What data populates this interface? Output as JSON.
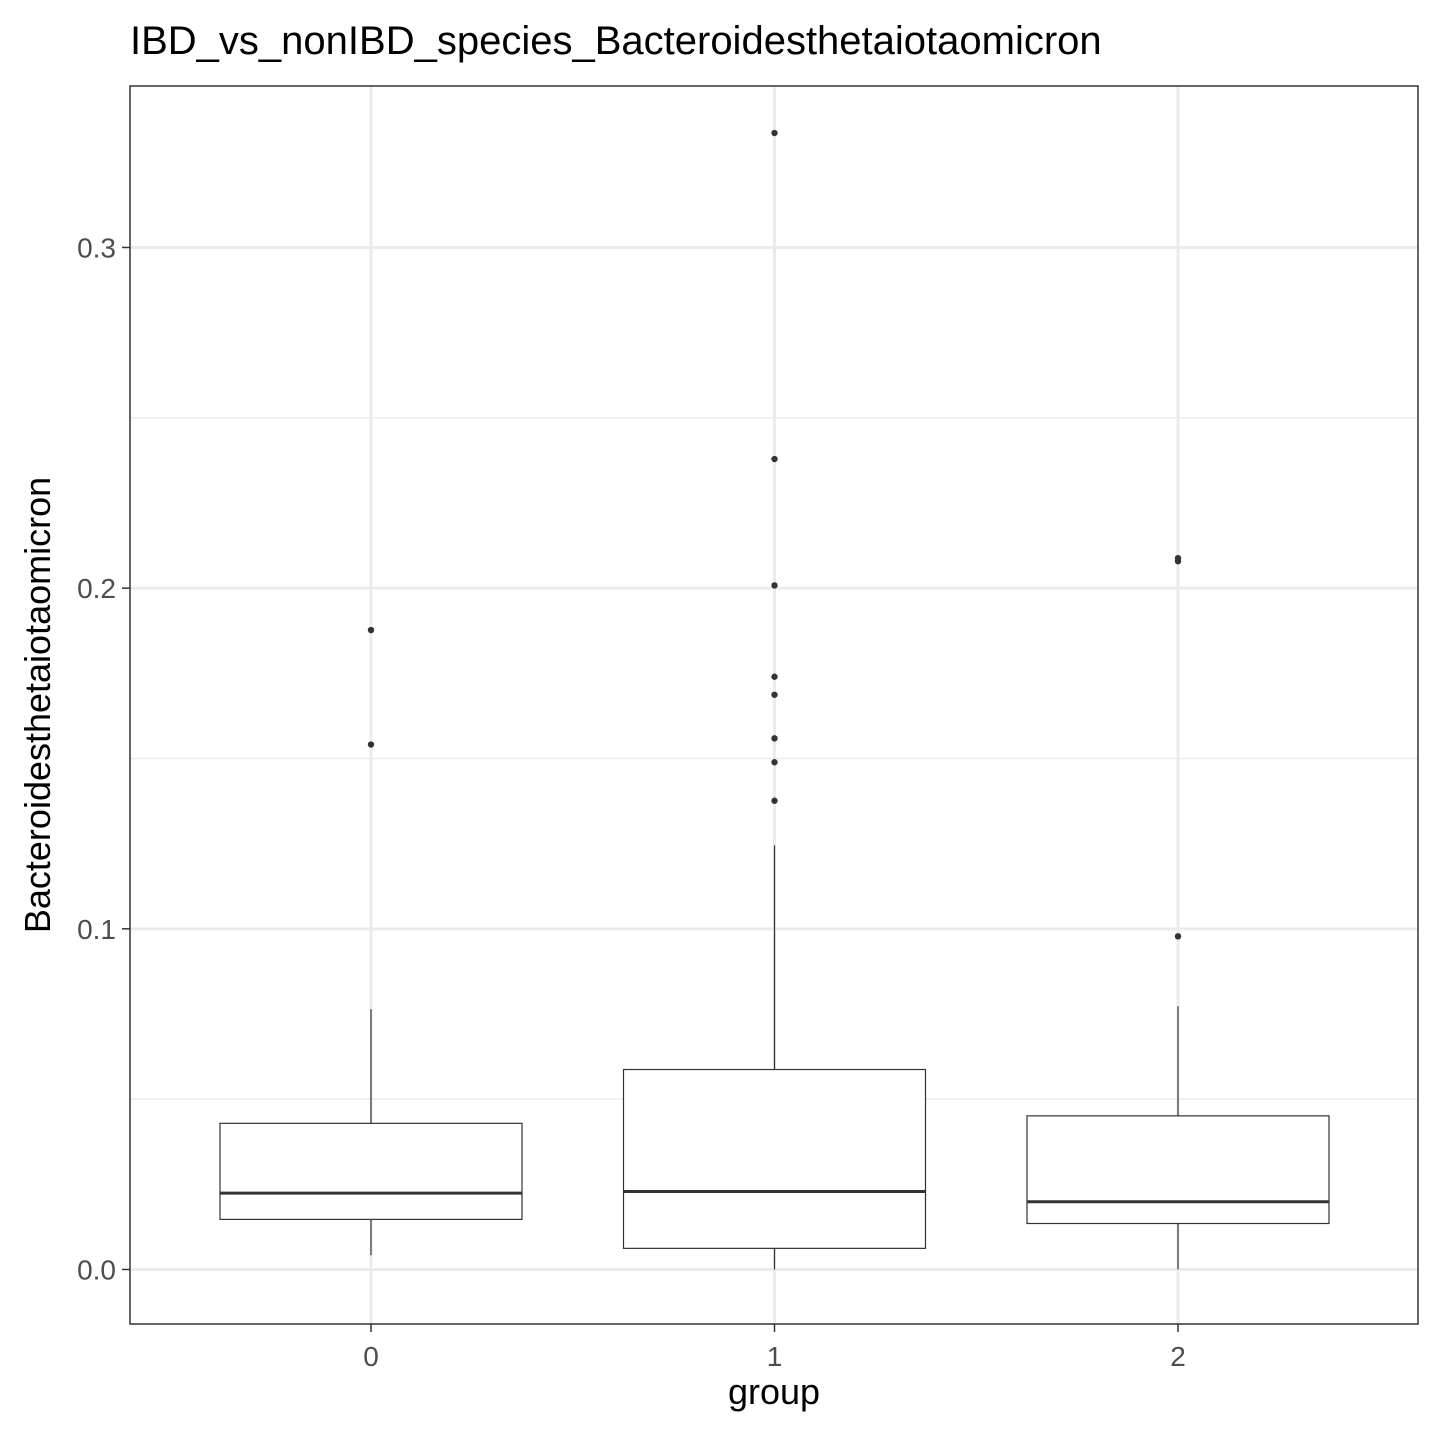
{
  "chart_data": {
    "type": "boxplot",
    "title": "IBD_vs_nonIBD_species_Bacteroidesthetaiotaomicron",
    "xlabel": "group",
    "ylabel": "Bacteroidesthetaiotaomicron",
    "categories": [
      "0",
      "1",
      "2"
    ],
    "ylim": [
      -0.016,
      0.3474
    ],
    "yticks": [
      0.0,
      0.1,
      0.2,
      0.3
    ],
    "ytick_labels": [
      "0.0",
      "0.1",
      "0.2",
      "0.3"
    ],
    "grid": true,
    "legend": false,
    "boxes": [
      {
        "group": "0",
        "whisker_low": 0.0042,
        "q1": 0.0147,
        "median": 0.0224,
        "q3": 0.0429,
        "whisker_high": 0.0764,
        "outliers": [
          0.1877,
          0.1541
        ]
      },
      {
        "group": "1",
        "whisker_low": 0.0,
        "q1": 0.0062,
        "median": 0.0229,
        "q3": 0.0587,
        "whisker_high": 0.1245,
        "outliers": [
          0.3336,
          0.2379,
          0.2008,
          0.174,
          0.1687,
          0.1559,
          0.1489,
          0.1376
        ]
      },
      {
        "group": "2",
        "whisker_low": 0.0,
        "q1": 0.0135,
        "median": 0.0199,
        "q3": 0.0451,
        "whisker_high": 0.0773,
        "outliers": [
          0.2088,
          0.2079,
          0.0978
        ]
      }
    ]
  }
}
